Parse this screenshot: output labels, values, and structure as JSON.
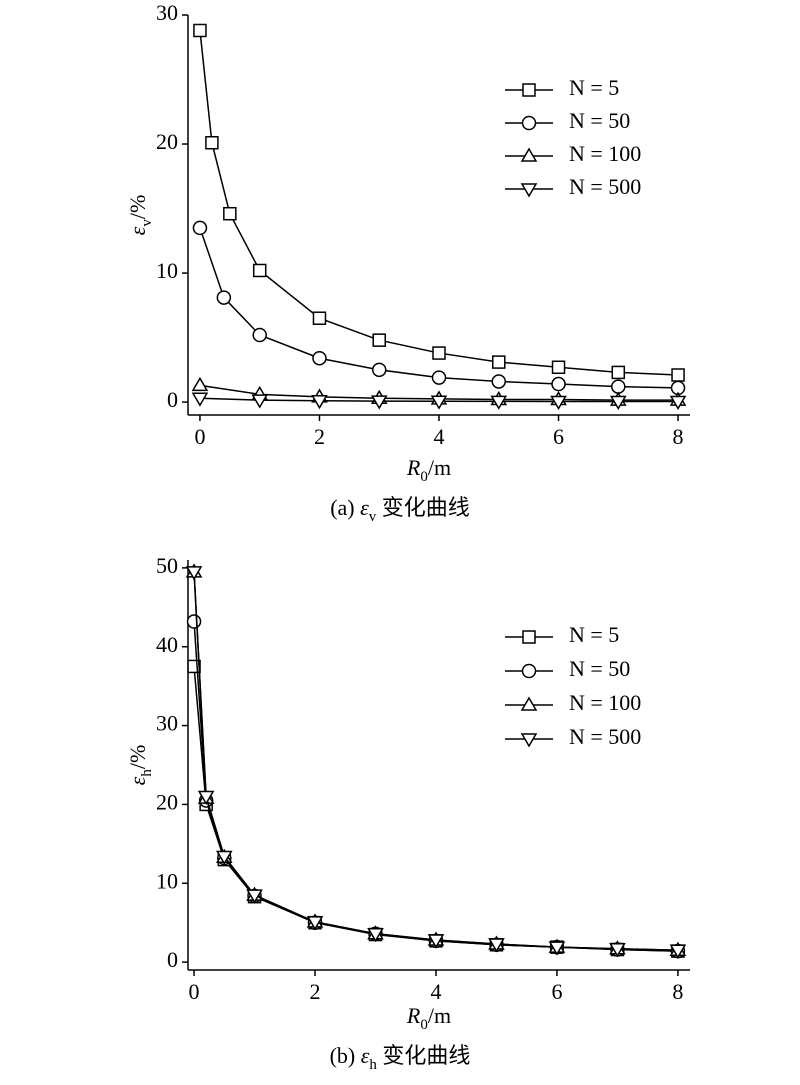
{
  "chart_data": [
    {
      "type": "line",
      "caption": [
        "(a) ",
        "ε",
        "v",
        " 变化曲线"
      ],
      "xlabel": [
        "R",
        "0",
        "/m"
      ],
      "ylabel": [
        "ε",
        "v",
        "/%"
      ],
      "xlim": [
        -0.2,
        8.2
      ],
      "xticks": [
        0,
        2,
        4,
        6,
        8
      ],
      "ylim": [
        -1,
        30
      ],
      "yticks": [
        0,
        10,
        20,
        30
      ],
      "legend": "upper right",
      "series": [
        {
          "name": "N = 5",
          "marker": "square",
          "color": "#000000",
          "x": [
            0,
            0.2,
            0.5,
            1,
            2,
            3,
            4,
            5,
            6,
            7,
            8
          ],
          "values": [
            28.8,
            20.1,
            14.6,
            10.2,
            6.5,
            4.8,
            3.8,
            3.1,
            2.7,
            2.3,
            2.1
          ]
        },
        {
          "name": "N = 50",
          "marker": "circle",
          "color": "#000000",
          "x": [
            0,
            0.4,
            1,
            2,
            3,
            4,
            5,
            6,
            7,
            8
          ],
          "values": [
            13.5,
            8.1,
            5.2,
            3.4,
            2.5,
            1.9,
            1.6,
            1.4,
            1.2,
            1.1
          ]
        },
        {
          "name": "N = 100",
          "marker": "triangle-up",
          "color": "#000000",
          "x": [
            0,
            1,
            2,
            3,
            4,
            5,
            6,
            7,
            8
          ],
          "values": [
            1.3,
            0.6,
            0.4,
            0.3,
            0.25,
            0.2,
            0.2,
            0.15,
            0.15
          ]
        },
        {
          "name": "N = 500",
          "marker": "triangle-down",
          "color": "#000000",
          "x": [
            0,
            1,
            2,
            3,
            4,
            5,
            6,
            7,
            8
          ],
          "values": [
            0.3,
            0.15,
            0.1,
            0.08,
            0.07,
            0.06,
            0.05,
            0.05,
            0.05
          ]
        }
      ]
    },
    {
      "type": "line",
      "caption": [
        "(b) ",
        "ε",
        "h",
        " 变化曲线"
      ],
      "xlabel": [
        "R",
        "0",
        "/m"
      ],
      "ylabel": [
        "ε",
        "h",
        "/%"
      ],
      "xlim": [
        -0.1,
        8.2
      ],
      "xticks": [
        0,
        2,
        4,
        6,
        8
      ],
      "ylim": [
        -1,
        51
      ],
      "yticks": [
        0,
        10,
        20,
        30,
        40,
        50
      ],
      "legend": "upper right",
      "series": [
        {
          "name": "N = 5",
          "marker": "square",
          "color": "#000000",
          "x": [
            0,
            0.2,
            0.5,
            1,
            2,
            3,
            4,
            5,
            6,
            7,
            8
          ],
          "values": [
            37.5,
            20,
            13,
            8.3,
            5,
            3.5,
            2.7,
            2.2,
            1.9,
            1.6,
            1.4
          ]
        },
        {
          "name": "N = 50",
          "marker": "circle",
          "color": "#000000",
          "x": [
            0,
            0.2,
            0.5,
            1,
            2,
            3,
            4,
            5,
            6,
            7,
            8
          ],
          "values": [
            43.2,
            20.5,
            13.2,
            8.4,
            5,
            3.6,
            2.7,
            2.2,
            1.9,
            1.6,
            1.4
          ]
        },
        {
          "name": "N = 100",
          "marker": "triangle-up",
          "color": "#000000",
          "x": [
            0,
            0.2,
            0.5,
            1,
            2,
            3,
            4,
            5,
            6,
            7,
            8
          ],
          "values": [
            49.5,
            20.8,
            13.3,
            8.5,
            5.1,
            3.6,
            2.8,
            2.3,
            1.9,
            1.7,
            1.5
          ]
        },
        {
          "name": "N = 500",
          "marker": "triangle-down",
          "color": "#000000",
          "x": [
            0,
            0.2,
            0.5,
            1,
            2,
            3,
            4,
            5,
            6,
            7,
            8
          ],
          "values": [
            49.5,
            21,
            13.4,
            8.5,
            5.1,
            3.6,
            2.8,
            2.3,
            1.9,
            1.7,
            1.5
          ]
        }
      ]
    }
  ]
}
